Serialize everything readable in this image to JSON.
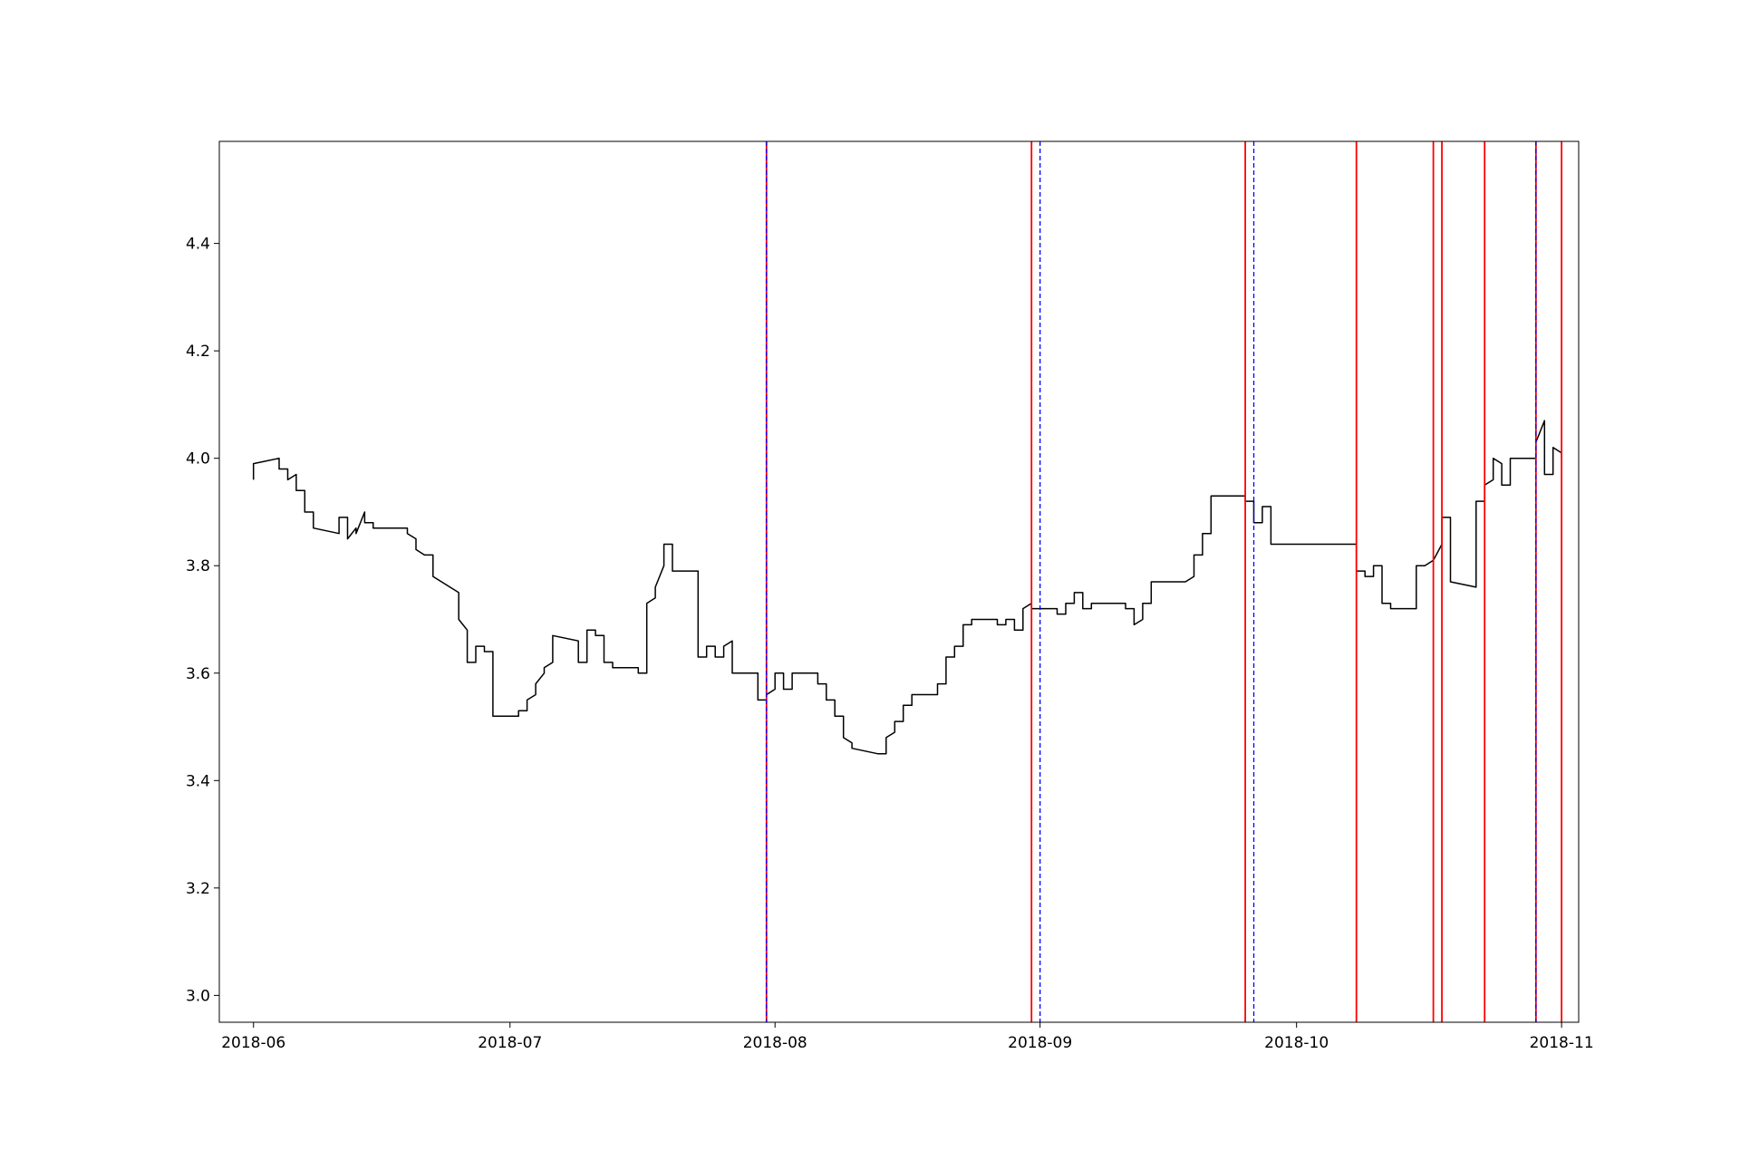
{
  "chart_data": {
    "type": "line",
    "title": "",
    "xlabel": "",
    "ylabel": "",
    "xlim": [
      "2018-05-28",
      "2018-11-03"
    ],
    "ylim": [
      2.95,
      4.59
    ],
    "x_ticks": [
      {
        "date": "2018-06-01",
        "label": "2018-06"
      },
      {
        "date": "2018-07-01",
        "label": "2018-07"
      },
      {
        "date": "2018-08-01",
        "label": "2018-08"
      },
      {
        "date": "2018-09-01",
        "label": "2018-09"
      },
      {
        "date": "2018-10-01",
        "label": "2018-10"
      },
      {
        "date": "2018-11-01",
        "label": "2018-11"
      }
    ],
    "y_ticks": [
      {
        "value": 3.0,
        "label": "3.0"
      },
      {
        "value": 3.2,
        "label": "3.2"
      },
      {
        "value": 3.4,
        "label": "3.4"
      },
      {
        "value": 3.6,
        "label": "3.6"
      },
      {
        "value": 3.8,
        "label": "3.8"
      },
      {
        "value": 4.0,
        "label": "4.0"
      },
      {
        "value": 4.2,
        "label": "4.2"
      },
      {
        "value": 4.4,
        "label": "4.4"
      }
    ],
    "grid": false,
    "legend": "none",
    "colors": {
      "series": "#000000",
      "solid_lines": "#ff0000",
      "dashed_lines": "#0000ff"
    },
    "series": [
      {
        "x": [
          "2018-06-01",
          "2018-06-01",
          "2018-06-04",
          "2018-06-04",
          "2018-06-05",
          "2018-06-05",
          "2018-06-06",
          "2018-06-06",
          "2018-06-07",
          "2018-06-07",
          "2018-06-08",
          "2018-06-08",
          "2018-06-11",
          "2018-06-11",
          "2018-06-12",
          "2018-06-12",
          "2018-06-13",
          "2018-06-13",
          "2018-06-14",
          "2018-06-14",
          "2018-06-15",
          "2018-06-15",
          "2018-06-19",
          "2018-06-19",
          "2018-06-20",
          "2018-06-20",
          "2018-06-21",
          "2018-06-21",
          "2018-06-22",
          "2018-06-22",
          "2018-06-25",
          "2018-06-25",
          "2018-06-26",
          "2018-06-26",
          "2018-06-27",
          "2018-06-27",
          "2018-06-28",
          "2018-06-28",
          "2018-06-29",
          "2018-06-29",
          "2018-07-02",
          "2018-07-02",
          "2018-07-03",
          "2018-07-03",
          "2018-07-04",
          "2018-07-04",
          "2018-07-05",
          "2018-07-05",
          "2018-07-06",
          "2018-07-06",
          "2018-07-09",
          "2018-07-09",
          "2018-07-10",
          "2018-07-10",
          "2018-07-11",
          "2018-07-11",
          "2018-07-12",
          "2018-07-12",
          "2018-07-13",
          "2018-07-13",
          "2018-07-16",
          "2018-07-16",
          "2018-07-17",
          "2018-07-17",
          "2018-07-18",
          "2018-07-18",
          "2018-07-19",
          "2018-07-19",
          "2018-07-20",
          "2018-07-20",
          "2018-07-23",
          "2018-07-23",
          "2018-07-24",
          "2018-07-24",
          "2018-07-25",
          "2018-07-25",
          "2018-07-26",
          "2018-07-26",
          "2018-07-27",
          "2018-07-27",
          "2018-07-30",
          "2018-07-30",
          "2018-07-31",
          "2018-07-31",
          "2018-08-01",
          "2018-08-01",
          "2018-08-02",
          "2018-08-02",
          "2018-08-03",
          "2018-08-03",
          "2018-08-06",
          "2018-08-06",
          "2018-08-07",
          "2018-08-07",
          "2018-08-08",
          "2018-08-08",
          "2018-08-09",
          "2018-08-09",
          "2018-08-10",
          "2018-08-10",
          "2018-08-13",
          "2018-08-13",
          "2018-08-14",
          "2018-08-14",
          "2018-08-15",
          "2018-08-15",
          "2018-08-16",
          "2018-08-16",
          "2018-08-17",
          "2018-08-17",
          "2018-08-20",
          "2018-08-20",
          "2018-08-21",
          "2018-08-21",
          "2018-08-22",
          "2018-08-22",
          "2018-08-23",
          "2018-08-23",
          "2018-08-24",
          "2018-08-24",
          "2018-08-27",
          "2018-08-27",
          "2018-08-28",
          "2018-08-28",
          "2018-08-29",
          "2018-08-29",
          "2018-08-30",
          "2018-08-30",
          "2018-08-31",
          "2018-08-31",
          "2018-09-03",
          "2018-09-03",
          "2018-09-04",
          "2018-09-04",
          "2018-09-05",
          "2018-09-05",
          "2018-09-06",
          "2018-09-06",
          "2018-09-07",
          "2018-09-07",
          "2018-09-10",
          "2018-09-10",
          "2018-09-11",
          "2018-09-11",
          "2018-09-12",
          "2018-09-12",
          "2018-09-13",
          "2018-09-13",
          "2018-09-14",
          "2018-09-14",
          "2018-09-17",
          "2018-09-17",
          "2018-09-18",
          "2018-09-18",
          "2018-09-19",
          "2018-09-19",
          "2018-09-20",
          "2018-09-20",
          "2018-09-21",
          "2018-09-21",
          "2018-09-25",
          "2018-09-25",
          "2018-09-26",
          "2018-09-26",
          "2018-09-27",
          "2018-09-27",
          "2018-09-28",
          "2018-09-28",
          "2018-10-08",
          "2018-10-08",
          "2018-10-09",
          "2018-10-09",
          "2018-10-10",
          "2018-10-10",
          "2018-10-11",
          "2018-10-11",
          "2018-10-12",
          "2018-10-12",
          "2018-10-15",
          "2018-10-15",
          "2018-10-16",
          "2018-10-16",
          "2018-10-17",
          "2018-10-17",
          "2018-10-18",
          "2018-10-18",
          "2018-10-19",
          "2018-10-19",
          "2018-10-22",
          "2018-10-22",
          "2018-10-23",
          "2018-10-23",
          "2018-10-24",
          "2018-10-24",
          "2018-10-25",
          "2018-10-25",
          "2018-10-26",
          "2018-10-26",
          "2018-10-29",
          "2018-10-29",
          "2018-10-30",
          "2018-10-30",
          "2018-10-31",
          "2018-10-31",
          "2018-11-01",
          "2018-11-01"
        ],
        "y": [
          3.96,
          3.99,
          4.0,
          3.98,
          3.98,
          3.96,
          3.97,
          3.94,
          3.94,
          3.9,
          3.9,
          3.87,
          3.86,
          3.89,
          3.89,
          3.85,
          3.87,
          3.86,
          3.9,
          3.88,
          3.88,
          3.87,
          3.87,
          3.86,
          3.85,
          3.83,
          3.82,
          3.82,
          3.82,
          3.78,
          3.75,
          3.7,
          3.68,
          3.62,
          3.62,
          3.65,
          3.65,
          3.64,
          3.64,
          3.52,
          3.52,
          3.53,
          3.53,
          3.55,
          3.56,
          3.58,
          3.6,
          3.61,
          3.62,
          3.67,
          3.66,
          3.62,
          3.62,
          3.68,
          3.68,
          3.67,
          3.67,
          3.62,
          3.62,
          3.61,
          3.61,
          3.6,
          3.6,
          3.73,
          3.74,
          3.76,
          3.8,
          3.84,
          3.84,
          3.79,
          3.79,
          3.63,
          3.63,
          3.65,
          3.65,
          3.63,
          3.63,
          3.65,
          3.66,
          3.6,
          3.6,
          3.55,
          3.55,
          3.56,
          3.57,
          3.6,
          3.6,
          3.57,
          3.57,
          3.6,
          3.6,
          3.58,
          3.58,
          3.55,
          3.55,
          3.52,
          3.52,
          3.48,
          3.47,
          3.46,
          3.45,
          3.45,
          3.45,
          3.48,
          3.49,
          3.51,
          3.51,
          3.54,
          3.54,
          3.56,
          3.56,
          3.58,
          3.58,
          3.63,
          3.63,
          3.65,
          3.65,
          3.69,
          3.69,
          3.7,
          3.7,
          3.69,
          3.69,
          3.7,
          3.7,
          3.68,
          3.68,
          3.72,
          3.73,
          3.72,
          3.72,
          3.71,
          3.71,
          3.73,
          3.73,
          3.75,
          3.75,
          3.72,
          3.72,
          3.73,
          3.73,
          3.73,
          3.73,
          3.72,
          3.72,
          3.69,
          3.7,
          3.73,
          3.73,
          3.77,
          3.77,
          3.77,
          3.77,
          3.77,
          3.78,
          3.82,
          3.82,
          3.86,
          3.86,
          3.93,
          3.93,
          3.92,
          3.92,
          3.88,
          3.88,
          3.91,
          3.91,
          3.84,
          3.84,
          3.79,
          3.79,
          3.78,
          3.78,
          3.8,
          3.8,
          3.73,
          3.73,
          3.72,
          3.72,
          3.8,
          3.8,
          3.8,
          3.81,
          3.81,
          3.84,
          3.89,
          3.89,
          3.77,
          3.76,
          3.92,
          3.92,
          3.95,
          3.96,
          4.0,
          3.99,
          3.95,
          3.95,
          4.0,
          4.0,
          4.03,
          4.07,
          3.97,
          3.97,
          4.02,
          4.01,
          4.0
        ]
      }
    ],
    "vertical_lines": {
      "solid_red": [
        "2018-07-31",
        "2018-08-31",
        "2018-09-25",
        "2018-10-08",
        "2018-10-17",
        "2018-10-18",
        "2018-10-23",
        "2018-10-29",
        "2018-11-01"
      ],
      "dashed_blue": [
        "2018-07-31",
        "2018-09-01",
        "2018-09-26",
        "2018-10-29"
      ]
    }
  }
}
